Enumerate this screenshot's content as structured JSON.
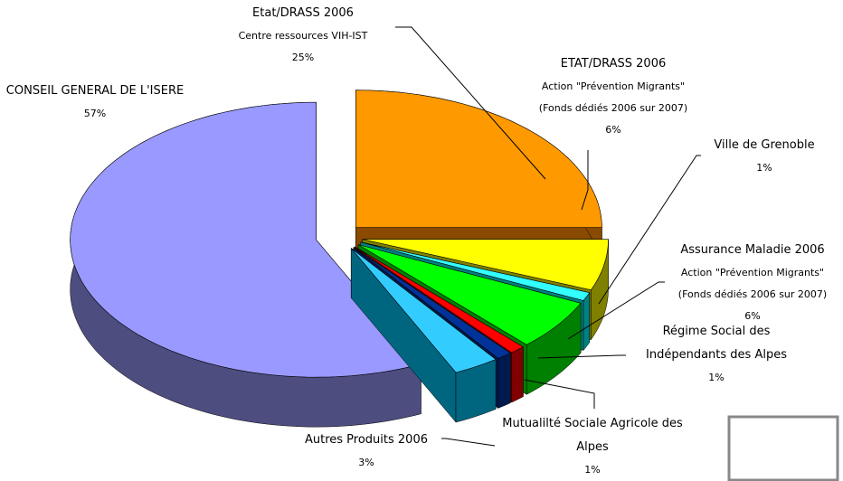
{
  "chart_data": {
    "type": "pie",
    "categories": [
      "Etat/DRASS 2006",
      "ETAT/DRASS 2006",
      "Ville de Grenoble",
      "Assurance Maladie 2006",
      "Régime Social des Indépendants des Alpes",
      "Mutualilté Sociale Agricole des Alpes",
      "Autres Produits 2006",
      "CONSEIL GENERAL DE L'ISERE"
    ],
    "label_details": [
      [
        "Centre ressources VIH-IST"
      ],
      [
        "Action \"Prévention Migrants\"",
        "(Fonds dédiés 2006 sur 2007)"
      ],
      null,
      [
        "Action \"Prévention Migrants\"",
        "(Fonds dédiés 2006 sur 2007)"
      ],
      null,
      null,
      null,
      null
    ],
    "values": [
      25,
      6,
      1,
      6,
      1,
      1,
      3,
      57
    ],
    "value_labels": [
      "25%",
      "6%",
      "1%",
      "6%",
      "1%",
      "1%",
      "3%",
      "57%"
    ],
    "colors": [
      "#ff9900",
      "#ffff00",
      "#33ffff",
      "#00ff00",
      "#ff0000",
      "#003399",
      "#33ccff",
      "#9999ff"
    ],
    "side_colors": [
      "#8a4b00",
      "#808000",
      "#008080",
      "#008000",
      "#800000",
      "#001a4d",
      "#006680",
      "#4d4d80"
    ]
  }
}
